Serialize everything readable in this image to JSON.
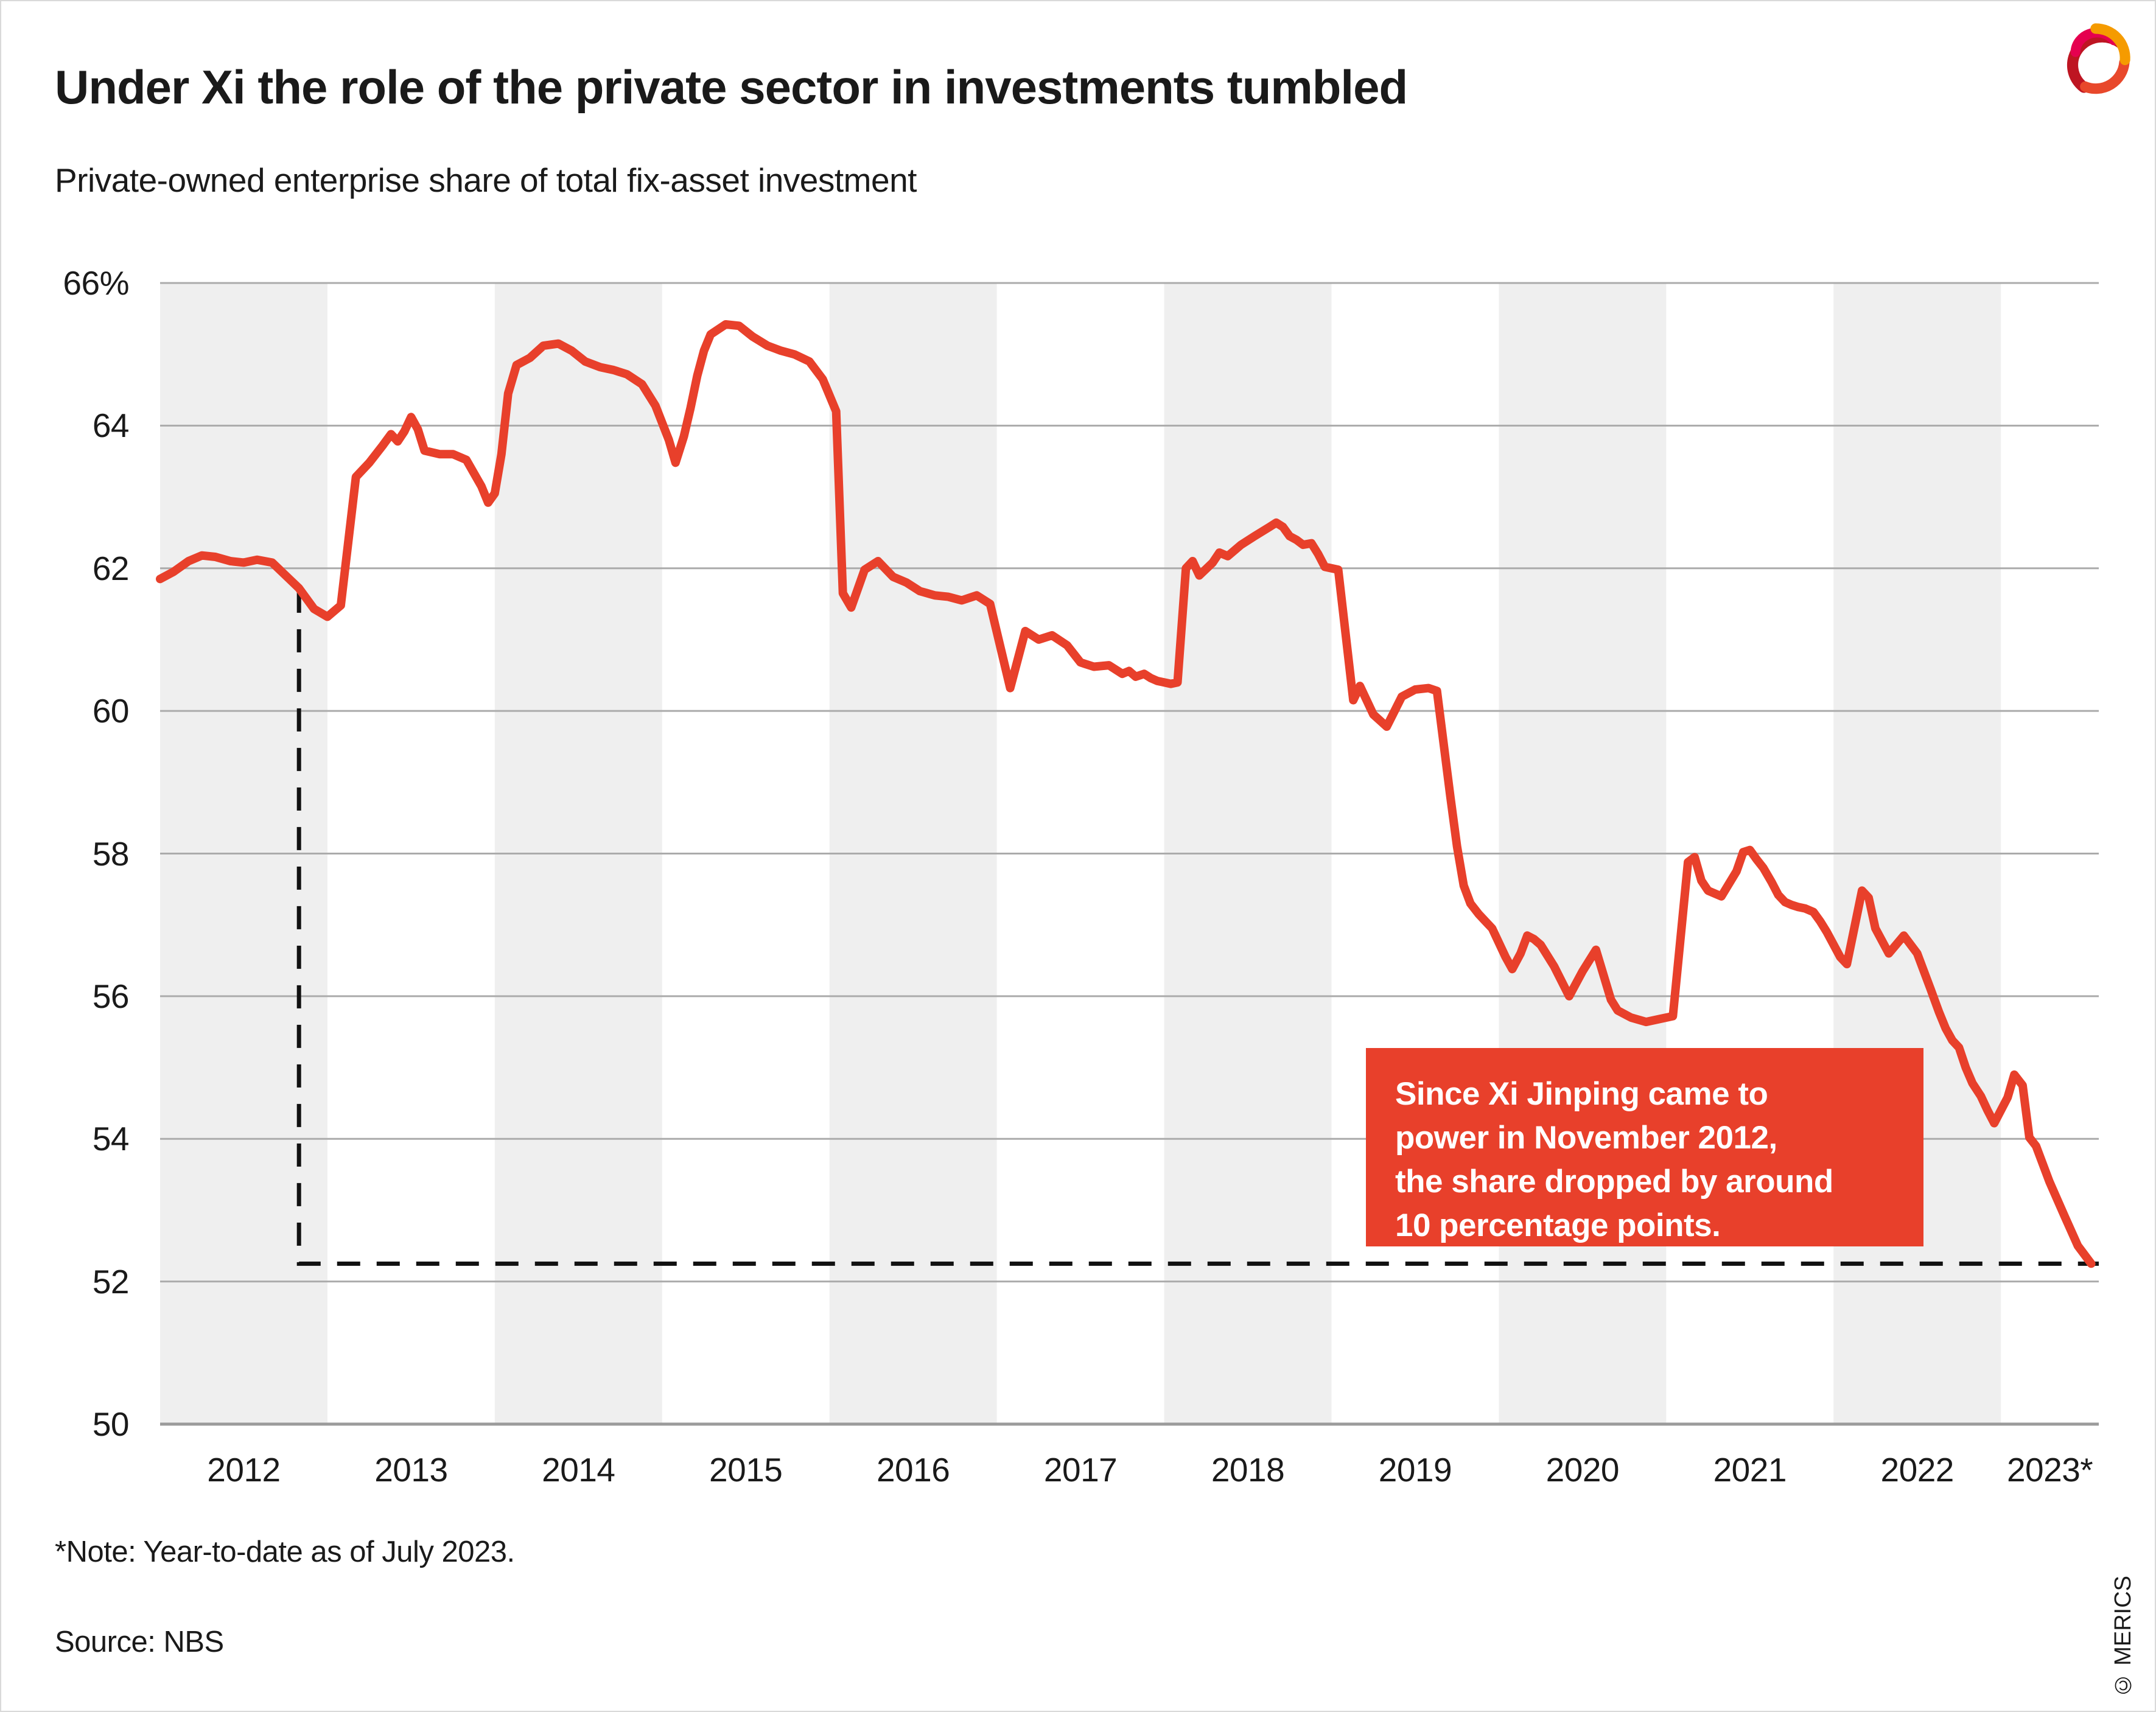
{
  "header": {
    "title": "Under Xi the role of the private sector in investments tumbled",
    "subtitle": "Private-owned enterprise share of total fix-asset investment"
  },
  "annotation": {
    "lines": [
      "Since Xi Jinping came to",
      "power in November 2012,",
      "the share dropped by around",
      "10 percentage points."
    ]
  },
  "footer": {
    "note": "*Note: Year-to-date as of July 2023.",
    "source": "Source: NBS",
    "copyright": "© MERICS"
  },
  "colors": {
    "accent_red": "#e8402b",
    "band_gray": "#efefef",
    "grid_gray": "#ababab",
    "axis_gray": "#9b9b9b",
    "dash_black": "#111111",
    "text": "#1a1a1a",
    "logo_dark_red": "#be1522",
    "logo_pink": "#e5004f",
    "logo_orange": "#f59b00",
    "logo_red_orange": "#e8482b"
  },
  "chart_data": {
    "type": "line",
    "title": "Under Xi the role of the private sector in investments tumbled",
    "subtitle": "Private-owned enterprise share of total fix-asset investment",
    "xlabel": "",
    "ylabel": "Private-owned enterprise share of total fix-asset investment (%)",
    "x_range": [
      2012,
      2023.585
    ],
    "ylim": [
      50,
      66
    ],
    "grid": "horizontal",
    "band_years_shaded": [
      2012,
      2014,
      2016,
      2018,
      2020,
      2022
    ],
    "y_ticks": [
      {
        "v": 66,
        "label": "66%"
      },
      {
        "v": 64,
        "label": "64"
      },
      {
        "v": 62,
        "label": "62"
      },
      {
        "v": 60,
        "label": "60"
      },
      {
        "v": 58,
        "label": "58"
      },
      {
        "v": 56,
        "label": "56"
      },
      {
        "v": 54,
        "label": "54"
      },
      {
        "v": 52,
        "label": "52"
      },
      {
        "v": 50,
        "label": "50"
      }
    ],
    "x_ticks": [
      {
        "year": 2012,
        "label": "2012"
      },
      {
        "year": 2013,
        "label": "2013"
      },
      {
        "year": 2014,
        "label": "2014"
      },
      {
        "year": 2015,
        "label": "2015"
      },
      {
        "year": 2016,
        "label": "2016"
      },
      {
        "year": 2017,
        "label": "2017"
      },
      {
        "year": 2018,
        "label": "2018"
      },
      {
        "year": 2019,
        "label": "2019"
      },
      {
        "year": 2020,
        "label": "2020"
      },
      {
        "year": 2021,
        "label": "2021"
      },
      {
        "year": 2022,
        "label": "2022"
      },
      {
        "year": 2023,
        "label": "2023*"
      }
    ],
    "drop_line": {
      "marker_year": 2012.83,
      "from_value": 61.7,
      "level": 52.25,
      "end_year": 2023.585
    },
    "series": [
      {
        "name": "Private-owned enterprise share of total fix-asset investment",
        "points": [
          [
            2012.0,
            61.85
          ],
          [
            2012.08,
            61.95
          ],
          [
            2012.17,
            62.1
          ],
          [
            2012.25,
            62.18
          ],
          [
            2012.33,
            62.16
          ],
          [
            2012.42,
            62.1
          ],
          [
            2012.5,
            62.08
          ],
          [
            2012.58,
            62.12
          ],
          [
            2012.67,
            62.08
          ],
          [
            2012.75,
            61.9
          ],
          [
            2012.83,
            61.72
          ],
          [
            2012.92,
            61.43
          ],
          [
            2013.0,
            61.32
          ],
          [
            2013.08,
            61.48
          ],
          [
            2013.17,
            63.28
          ],
          [
            2013.25,
            63.48
          ],
          [
            2013.33,
            63.72
          ],
          [
            2013.38,
            63.88
          ],
          [
            2013.42,
            63.78
          ],
          [
            2013.46,
            63.92
          ],
          [
            2013.5,
            64.12
          ],
          [
            2013.54,
            63.95
          ],
          [
            2013.58,
            63.65
          ],
          [
            2013.67,
            63.6
          ],
          [
            2013.75,
            63.6
          ],
          [
            2013.83,
            63.52
          ],
          [
            2013.92,
            63.15
          ],
          [
            2013.96,
            62.92
          ],
          [
            2014.0,
            63.05
          ],
          [
            2014.04,
            63.6
          ],
          [
            2014.08,
            64.45
          ],
          [
            2014.13,
            64.85
          ],
          [
            2014.21,
            64.95
          ],
          [
            2014.29,
            65.12
          ],
          [
            2014.38,
            65.15
          ],
          [
            2014.46,
            65.05
          ],
          [
            2014.54,
            64.9
          ],
          [
            2014.63,
            64.82
          ],
          [
            2014.71,
            64.78
          ],
          [
            2014.79,
            64.72
          ],
          [
            2014.88,
            64.58
          ],
          [
            2014.96,
            64.28
          ],
          [
            2015.04,
            63.8
          ],
          [
            2015.08,
            63.48
          ],
          [
            2015.13,
            63.85
          ],
          [
            2015.17,
            64.25
          ],
          [
            2015.21,
            64.7
          ],
          [
            2015.25,
            65.05
          ],
          [
            2015.29,
            65.28
          ],
          [
            2015.38,
            65.42
          ],
          [
            2015.46,
            65.4
          ],
          [
            2015.54,
            65.25
          ],
          [
            2015.63,
            65.12
          ],
          [
            2015.71,
            65.05
          ],
          [
            2015.79,
            65.0
          ],
          [
            2015.88,
            64.9
          ],
          [
            2015.96,
            64.65
          ],
          [
            2016.04,
            64.2
          ],
          [
            2016.08,
            61.65
          ],
          [
            2016.13,
            61.45
          ],
          [
            2016.21,
            61.98
          ],
          [
            2016.29,
            62.1
          ],
          [
            2016.38,
            61.88
          ],
          [
            2016.46,
            61.8
          ],
          [
            2016.54,
            61.68
          ],
          [
            2016.63,
            61.62
          ],
          [
            2016.71,
            61.6
          ],
          [
            2016.79,
            61.55
          ],
          [
            2016.88,
            61.62
          ],
          [
            2016.96,
            61.5
          ],
          [
            2017.08,
            60.32
          ],
          [
            2017.17,
            61.12
          ],
          [
            2017.25,
            61.0
          ],
          [
            2017.33,
            61.06
          ],
          [
            2017.42,
            60.92
          ],
          [
            2017.5,
            60.68
          ],
          [
            2017.58,
            60.62
          ],
          [
            2017.67,
            60.64
          ],
          [
            2017.75,
            60.52
          ],
          [
            2017.79,
            60.56
          ],
          [
            2017.83,
            60.48
          ],
          [
            2017.88,
            60.52
          ],
          [
            2017.92,
            60.46
          ],
          [
            2017.96,
            60.42
          ],
          [
            2018.04,
            60.38
          ],
          [
            2018.08,
            60.4
          ],
          [
            2018.13,
            62.0
          ],
          [
            2018.17,
            62.1
          ],
          [
            2018.21,
            61.9
          ],
          [
            2018.29,
            62.08
          ],
          [
            2018.33,
            62.22
          ],
          [
            2018.38,
            62.17
          ],
          [
            2018.46,
            62.33
          ],
          [
            2018.54,
            62.45
          ],
          [
            2018.63,
            62.58
          ],
          [
            2018.67,
            62.64
          ],
          [
            2018.71,
            62.58
          ],
          [
            2018.75,
            62.45
          ],
          [
            2018.79,
            62.4
          ],
          [
            2018.83,
            62.33
          ],
          [
            2018.88,
            62.35
          ],
          [
            2018.92,
            62.2
          ],
          [
            2018.96,
            62.02
          ],
          [
            2019.04,
            61.98
          ],
          [
            2019.13,
            60.15
          ],
          [
            2019.17,
            60.35
          ],
          [
            2019.25,
            59.95
          ],
          [
            2019.33,
            59.78
          ],
          [
            2019.42,
            60.2
          ],
          [
            2019.5,
            60.3
          ],
          [
            2019.58,
            60.32
          ],
          [
            2019.63,
            60.28
          ],
          [
            2019.71,
            58.8
          ],
          [
            2019.75,
            58.1
          ],
          [
            2019.79,
            57.55
          ],
          [
            2019.83,
            57.3
          ],
          [
            2019.88,
            57.15
          ],
          [
            2019.92,
            57.05
          ],
          [
            2019.96,
            56.95
          ],
          [
            2020.04,
            56.55
          ],
          [
            2020.08,
            56.38
          ],
          [
            2020.13,
            56.6
          ],
          [
            2020.17,
            56.85
          ],
          [
            2020.21,
            56.8
          ],
          [
            2020.25,
            56.72
          ],
          [
            2020.33,
            56.42
          ],
          [
            2020.42,
            56.0
          ],
          [
            2020.5,
            56.35
          ],
          [
            2020.58,
            56.65
          ],
          [
            2020.67,
            55.95
          ],
          [
            2020.71,
            55.8
          ],
          [
            2020.79,
            55.7
          ],
          [
            2020.88,
            55.64
          ],
          [
            2020.96,
            55.68
          ],
          [
            2021.04,
            55.72
          ],
          [
            2021.13,
            57.88
          ],
          [
            2021.17,
            57.95
          ],
          [
            2021.21,
            57.62
          ],
          [
            2021.25,
            57.48
          ],
          [
            2021.33,
            57.4
          ],
          [
            2021.42,
            57.75
          ],
          [
            2021.46,
            58.02
          ],
          [
            2021.5,
            58.05
          ],
          [
            2021.54,
            57.92
          ],
          [
            2021.58,
            57.8
          ],
          [
            2021.63,
            57.6
          ],
          [
            2021.67,
            57.42
          ],
          [
            2021.71,
            57.32
          ],
          [
            2021.75,
            57.28
          ],
          [
            2021.79,
            57.25
          ],
          [
            2021.83,
            57.23
          ],
          [
            2021.88,
            57.18
          ],
          [
            2021.92,
            57.05
          ],
          [
            2021.96,
            56.9
          ],
          [
            2022.04,
            56.55
          ],
          [
            2022.08,
            56.45
          ],
          [
            2022.17,
            57.48
          ],
          [
            2022.21,
            57.38
          ],
          [
            2022.25,
            56.95
          ],
          [
            2022.33,
            56.6
          ],
          [
            2022.42,
            56.85
          ],
          [
            2022.5,
            56.6
          ],
          [
            2022.54,
            56.35
          ],
          [
            2022.58,
            56.1
          ],
          [
            2022.63,
            55.78
          ],
          [
            2022.67,
            55.55
          ],
          [
            2022.71,
            55.38
          ],
          [
            2022.75,
            55.28
          ],
          [
            2022.79,
            55.0
          ],
          [
            2022.83,
            54.78
          ],
          [
            2022.88,
            54.6
          ],
          [
            2022.92,
            54.4
          ],
          [
            2022.96,
            54.22
          ],
          [
            2023.04,
            54.58
          ],
          [
            2023.08,
            54.9
          ],
          [
            2023.13,
            54.75
          ],
          [
            2023.17,
            54.02
          ],
          [
            2023.21,
            53.9
          ],
          [
            2023.29,
            53.4
          ],
          [
            2023.38,
            52.92
          ],
          [
            2023.46,
            52.5
          ],
          [
            2023.54,
            52.25
          ]
        ]
      }
    ]
  }
}
